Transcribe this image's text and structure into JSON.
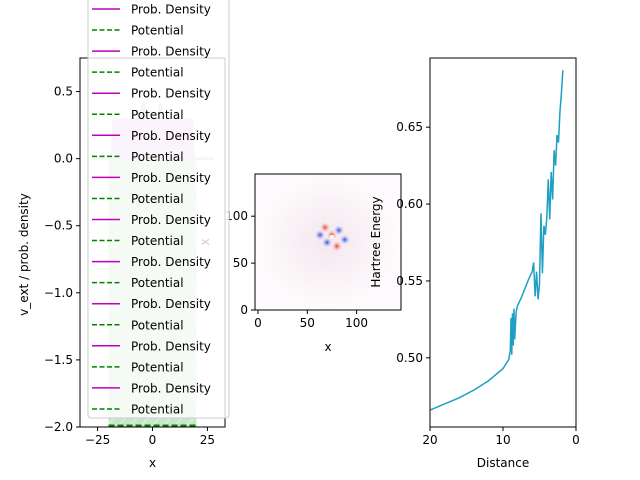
{
  "chart_data": [
    {
      "type": "line",
      "panel": "left",
      "xlabel": "x",
      "ylabel": "v_ext / prob. density",
      "xlim": [
        -33,
        33
      ],
      "ylim": [
        -2.0,
        0.75
      ],
      "xticks": [
        "−25",
        "0",
        "25"
      ],
      "yticks": [
        "0.5",
        "0.0",
        "−0.5",
        "−1.0",
        "−1.5",
        "−2.0"
      ],
      "xtick_values": [
        -25,
        0,
        25
      ],
      "ytick_values": [
        0.5,
        0.0,
        -0.5,
        -1.0,
        -1.5,
        -2.0
      ],
      "series": [
        {
          "name": "Prob. Density",
          "color": "#bf00bf",
          "style": "solid",
          "x": [
            -19,
            -18.5,
            -10,
            -6,
            -5,
            -3,
            -2,
            2,
            3,
            4,
            6,
            10,
            18.5,
            19,
            20,
            22
          ],
          "values": [
            0.0,
            0.3,
            0.3,
            0.3,
            0.42,
            0.42,
            0.3,
            0.3,
            0.42,
            0.42,
            0.3,
            0.3,
            0.3,
            0.05,
            0.0,
            0.0
          ]
        },
        {
          "name": "Potential",
          "color": "#008000",
          "style": "dashed",
          "x": [
            -28,
            -23,
            -21,
            -20,
            -20,
            20,
            20,
            21,
            23,
            28
          ],
          "values": [
            0.0,
            0.0,
            0.0,
            0.0,
            -2.0,
            -2.0,
            0.0,
            0.0,
            0.0,
            0.0
          ]
        }
      ],
      "legend_entries": [
        {
          "label": "Prob. Density",
          "style": "solid",
          "color": "#bf00bf"
        },
        {
          "label": "Potential",
          "style": "dashed",
          "color": "#008000"
        },
        {
          "label": "Prob. Density",
          "style": "solid",
          "color": "#bf00bf"
        },
        {
          "label": "Potential",
          "style": "dashed",
          "color": "#008000"
        },
        {
          "label": "Prob. Density",
          "style": "solid",
          "color": "#bf00bf"
        },
        {
          "label": "Potential",
          "style": "dashed",
          "color": "#008000"
        },
        {
          "label": "Prob. Density",
          "style": "solid",
          "color": "#bf00bf"
        },
        {
          "label": "Potential",
          "style": "dashed",
          "color": "#008000"
        },
        {
          "label": "Prob. Density",
          "style": "solid",
          "color": "#bf00bf"
        },
        {
          "label": "Potential",
          "style": "dashed",
          "color": "#008000"
        },
        {
          "label": "Prob. Density",
          "style": "solid",
          "color": "#bf00bf"
        },
        {
          "label": "Potential",
          "style": "dashed",
          "color": "#008000"
        },
        {
          "label": "Prob. Density",
          "style": "solid",
          "color": "#bf00bf"
        },
        {
          "label": "Potential",
          "style": "dashed",
          "color": "#008000"
        },
        {
          "label": "Prob. Density",
          "style": "solid",
          "color": "#bf00bf"
        },
        {
          "label": "Potential",
          "style": "dashed",
          "color": "#008000"
        },
        {
          "label": "Prob. Density",
          "style": "solid",
          "color": "#bf00bf"
        },
        {
          "label": "Potential",
          "style": "dashed",
          "color": "#008000"
        },
        {
          "label": "Prob. Density",
          "style": "solid",
          "color": "#bf00bf"
        },
        {
          "label": "Potential",
          "style": "dashed",
          "color": "#008000"
        }
      ],
      "fill_colors": {
        "density": "#eec8f0",
        "potential": "#c9e6c9"
      }
    },
    {
      "type": "heatmap",
      "panel": "middle",
      "xlabel": "x",
      "ylabel": "x",
      "xlim": [
        -3,
        145
      ],
      "ylim": [
        0,
        145
      ],
      "xticks": [
        "0",
        "50",
        "100"
      ],
      "yticks": [
        "0",
        "50",
        "100"
      ],
      "tick_values": [
        0,
        50,
        100
      ],
      "colormap": "bwr",
      "blobs": [
        {
          "x": 75,
          "y": 80,
          "value": 0.6,
          "label": "positive lobe"
        },
        {
          "x": 70,
          "y": 72,
          "value": -0.6,
          "label": "negative lobe"
        },
        {
          "x": 82,
          "y": 85,
          "value": -0.6
        },
        {
          "x": 63,
          "y": 80,
          "value": -0.7
        },
        {
          "x": 88,
          "y": 75,
          "value": -0.7
        },
        {
          "x": 80,
          "y": 68,
          "value": 0.6
        },
        {
          "x": 68,
          "y": 88,
          "value": 0.6
        }
      ]
    },
    {
      "type": "line",
      "panel": "right",
      "xlabel": "Distance",
      "ylabel": "Hartree Energy",
      "xlim": [
        20,
        0
      ],
      "ylim": [
        0.455,
        0.695
      ],
      "xticks": [
        "20",
        "10",
        "0"
      ],
      "yticks": [
        "0.50",
        "0.55",
        "0.60",
        "0.65"
      ],
      "xtick_values": [
        20,
        10,
        0
      ],
      "ytick_values": [
        0.5,
        0.55,
        0.6,
        0.65
      ],
      "series": [
        {
          "color": "#1f9fc2",
          "x": [
            20,
            18,
            16,
            14,
            12,
            10,
            9.2,
            9,
            8.9,
            8.8,
            8.7,
            8.6,
            8.5,
            8.4,
            8.2,
            8,
            7.5,
            7,
            6.5,
            6,
            5.8,
            5.6,
            5.4,
            5.2,
            5,
            4.8,
            4.6,
            4.4,
            4.2,
            4,
            3.8,
            3.6,
            3.4,
            3.2,
            3,
            2.8,
            2.6,
            2.4,
            2.2,
            2,
            1.8
          ],
          "values": [
            0.466,
            0.47,
            0.474,
            0.479,
            0.485,
            0.493,
            0.499,
            0.505,
            0.526,
            0.502,
            0.529,
            0.508,
            0.532,
            0.512,
            0.53,
            0.534,
            0.539,
            0.545,
            0.551,
            0.556,
            0.562,
            0.54,
            0.556,
            0.538,
            0.548,
            0.594,
            0.555,
            0.586,
            0.58,
            0.591,
            0.616,
            0.59,
            0.621,
            0.603,
            0.635,
            0.625,
            0.645,
            0.64,
            0.66,
            0.672,
            0.687
          ]
        }
      ]
    }
  ]
}
